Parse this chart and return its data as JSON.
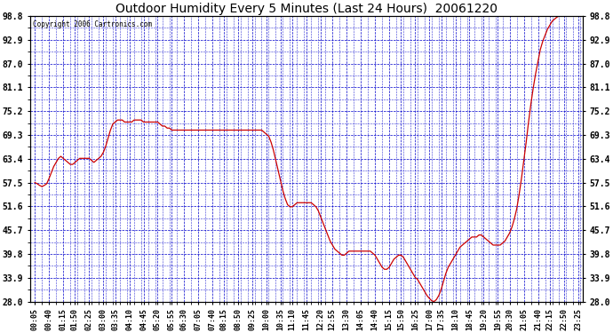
{
  "title": "Outdoor Humidity Every 5 Minutes (Last 24 Hours)  20061220",
  "copyright": "Copyright 2006 Cartronics.com",
  "background_color": "#ffffff",
  "plot_background": "#ffffff",
  "line_color": "#cc0000",
  "grid_color": "#0000cc",
  "yticks": [
    28.0,
    33.9,
    39.8,
    45.7,
    51.6,
    57.5,
    63.4,
    69.3,
    75.2,
    81.1,
    87.0,
    92.9,
    98.8
  ],
  "ylim_min": 28.0,
  "ylim_max": 98.8,
  "x_labels": [
    "00:05",
    "00:40",
    "01:15",
    "01:50",
    "02:25",
    "03:00",
    "03:35",
    "04:10",
    "04:45",
    "05:20",
    "05:55",
    "06:30",
    "07:05",
    "07:40",
    "08:15",
    "08:50",
    "09:25",
    "10:00",
    "10:35",
    "11:10",
    "11:45",
    "12:20",
    "12:55",
    "13:30",
    "14:05",
    "14:40",
    "15:15",
    "15:50",
    "16:25",
    "17:00",
    "17:35",
    "18:10",
    "18:45",
    "19:20",
    "19:55",
    "20:30",
    "21:05",
    "21:40",
    "22:15",
    "22:50",
    "23:25"
  ],
  "humidity_data": [
    57.5,
    57.2,
    56.8,
    56.5,
    56.8,
    57.2,
    58.5,
    60.0,
    61.5,
    62.5,
    63.5,
    64.0,
    63.5,
    63.0,
    62.5,
    62.0,
    62.0,
    62.5,
    63.0,
    63.5,
    63.5,
    63.5,
    63.5,
    63.5,
    63.0,
    62.5,
    63.0,
    63.5,
    64.0,
    65.0,
    66.5,
    68.5,
    70.5,
    72.0,
    72.5,
    73.0,
    73.0,
    73.0,
    72.5,
    72.5,
    72.5,
    72.5,
    73.0,
    73.0,
    73.0,
    73.0,
    72.5,
    72.5,
    72.5,
    72.5,
    72.5,
    72.5,
    72.5,
    72.0,
    71.5,
    71.5,
    71.0,
    71.0,
    70.5,
    70.5,
    70.5,
    70.5,
    70.5,
    70.5,
    70.5,
    70.5,
    70.5,
    70.5,
    70.5,
    70.5,
    70.5,
    70.5,
    70.5,
    70.5,
    70.5,
    70.5,
    70.5,
    70.5,
    70.5,
    70.5,
    70.5,
    70.5,
    70.5,
    70.5,
    70.5,
    70.5,
    70.5,
    70.5,
    70.5,
    70.5,
    70.5,
    70.5,
    70.5,
    70.5,
    70.5,
    70.5,
    70.5,
    70.0,
    69.5,
    69.0,
    67.5,
    65.5,
    63.0,
    60.5,
    58.0,
    55.5,
    53.5,
    52.0,
    51.5,
    51.5,
    52.0,
    52.5,
    52.5,
    52.5,
    52.5,
    52.5,
    52.5,
    52.5,
    52.0,
    51.5,
    50.5,
    49.0,
    47.5,
    46.0,
    44.5,
    43.0,
    42.0,
    41.0,
    40.5,
    40.0,
    39.5,
    39.5,
    40.0,
    40.5,
    40.5,
    40.5,
    40.5,
    40.5,
    40.5,
    40.5,
    40.5,
    40.5,
    40.5,
    40.0,
    39.5,
    38.5,
    37.5,
    36.5,
    36.0,
    36.0,
    36.5,
    37.5,
    38.5,
    39.0,
    39.5,
    39.5,
    39.0,
    38.0,
    37.0,
    36.0,
    35.0,
    34.0,
    33.5,
    32.5,
    31.5,
    30.5,
    29.5,
    28.8,
    28.2,
    28.0,
    28.5,
    29.5,
    31.0,
    33.0,
    35.0,
    36.5,
    37.5,
    38.5,
    39.5,
    40.5,
    41.5,
    42.0,
    42.5,
    43.0,
    43.5,
    44.0,
    44.0,
    44.0,
    44.5,
    44.5,
    44.0,
    43.5,
    43.0,
    42.5,
    42.0,
    42.0,
    42.0,
    42.0,
    42.5,
    43.0,
    44.0,
    45.0,
    46.5,
    48.5,
    51.0,
    54.5,
    58.5,
    63.0,
    67.5,
    72.5,
    77.0,
    81.0,
    84.5,
    87.5,
    90.5,
    92.5,
    94.0,
    95.5,
    96.5,
    97.5,
    98.0,
    98.5,
    98.8,
    98.8,
    98.8,
    98.8,
    98.8,
    98.8,
    98.8,
    98.8,
    98.8
  ]
}
